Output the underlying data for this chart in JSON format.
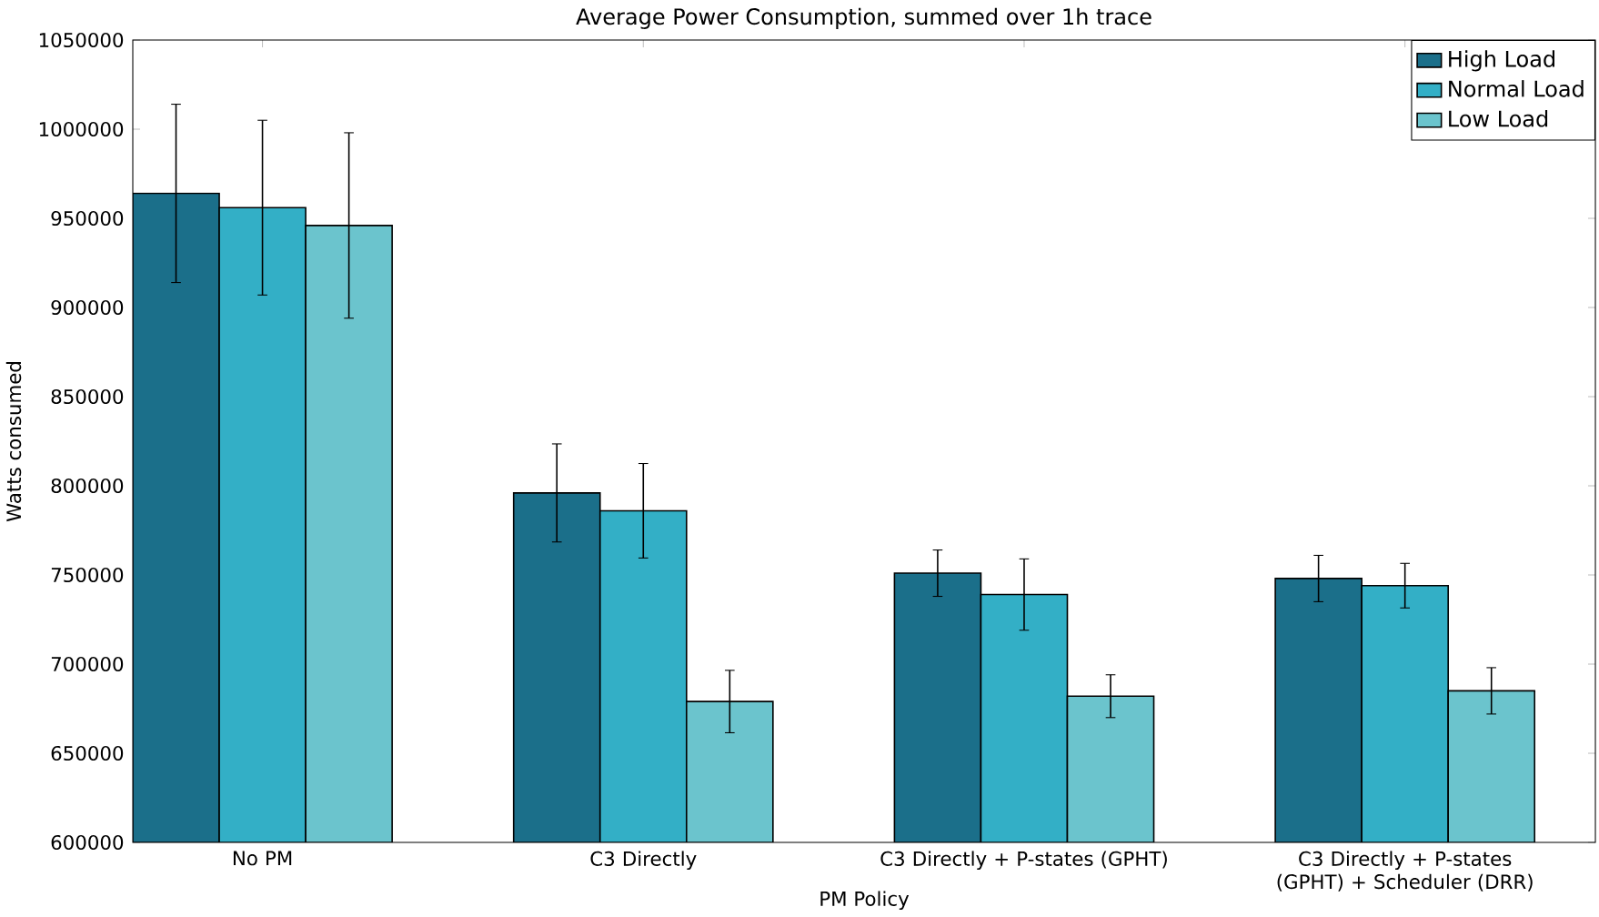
{
  "chart_data": {
    "type": "bar",
    "title": "Average Power Consumption, summed over 1h trace",
    "xlabel": "PM Policy",
    "ylabel": "Watts consumed",
    "categories": [
      "No PM",
      "C3 Directly",
      "C3 Directly + P-states (GPHT)",
      "C3 Directly + P-states (GPHT) + Scheduler (DRR)"
    ],
    "series": [
      {
        "name": "High Load",
        "color": "#1b6f8a",
        "values": [
          964000,
          796000,
          751000,
          748000
        ],
        "errors": [
          50000,
          27500,
          13000,
          13000
        ]
      },
      {
        "name": "Normal Load",
        "color": "#33afc6",
        "values": [
          956000,
          786000,
          739000,
          744000
        ],
        "errors": [
          49000,
          26500,
          20000,
          12500
        ]
      },
      {
        "name": "Low Load",
        "color": "#6bc4cd",
        "values": [
          946000,
          679000,
          682000,
          685000
        ],
        "errors": [
          52000,
          17500,
          12000,
          13000
        ]
      }
    ],
    "ylim": [
      600000,
      1050000
    ],
    "yticks": [
      600000,
      650000,
      700000,
      750000,
      800000,
      850000,
      900000,
      950000,
      1000000,
      1050000
    ],
    "legend": "top right",
    "grid": false
  }
}
